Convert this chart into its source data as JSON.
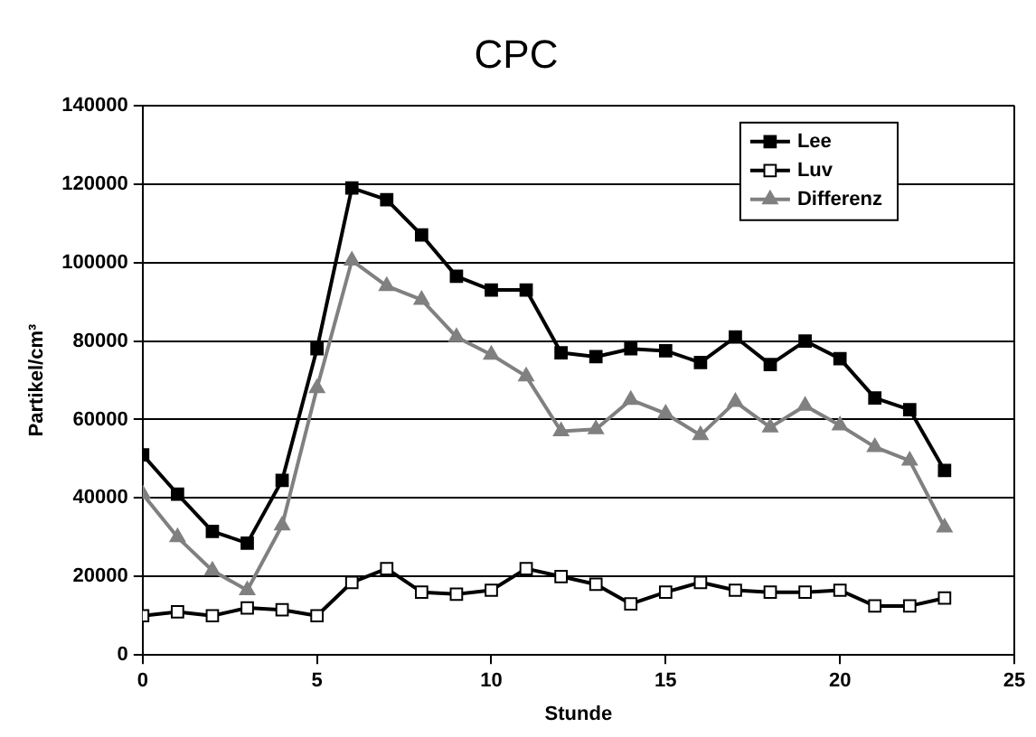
{
  "chart_data": {
    "type": "line",
    "title": "CPC",
    "xlabel": "Stunde",
    "ylabel": "Partikel/cm³",
    "x": [
      0,
      1,
      2,
      3,
      4,
      5,
      6,
      7,
      8,
      9,
      10,
      11,
      12,
      13,
      14,
      15,
      16,
      17,
      18,
      19,
      20,
      21,
      22,
      23
    ],
    "series": [
      {
        "name": "Lee",
        "color": "#000000",
        "marker": "square",
        "values": [
          51000,
          41000,
          31500,
          28500,
          44500,
          78000,
          119000,
          116000,
          107000,
          96500,
          93000,
          93000,
          77000,
          76000,
          78000,
          77500,
          74500,
          81000,
          74000,
          80000,
          75500,
          65500,
          62500,
          47000
        ]
      },
      {
        "name": "Luv",
        "color": "#000000",
        "marker": "square",
        "values": [
          10000,
          11000,
          10000,
          12000,
          11500,
          10000,
          18500,
          22000,
          16000,
          15500,
          16500,
          22000,
          20000,
          18000,
          13000,
          16000,
          18500,
          16500,
          16000,
          16000,
          16500,
          12500,
          12500,
          14500
        ]
      },
      {
        "name": "Differenz",
        "color": "#808080",
        "marker": "triangle",
        "values": [
          41000,
          30000,
          21500,
          16500,
          33000,
          68000,
          100500,
          94000,
          90500,
          81000,
          76500,
          71000,
          57000,
          57500,
          65000,
          61500,
          56000,
          64500,
          58000,
          63500,
          58500,
          53000,
          49500,
          32500
        ]
      }
    ],
    "xlim": [
      0,
      25
    ],
    "xticks": [
      0,
      5,
      10,
      15,
      20,
      25
    ],
    "ylim": [
      0,
      140000
    ],
    "yticks": [
      0,
      20000,
      40000,
      60000,
      80000,
      100000,
      120000,
      140000
    ],
    "grid": "y",
    "legend": "top right",
    "line_style": "solid"
  }
}
